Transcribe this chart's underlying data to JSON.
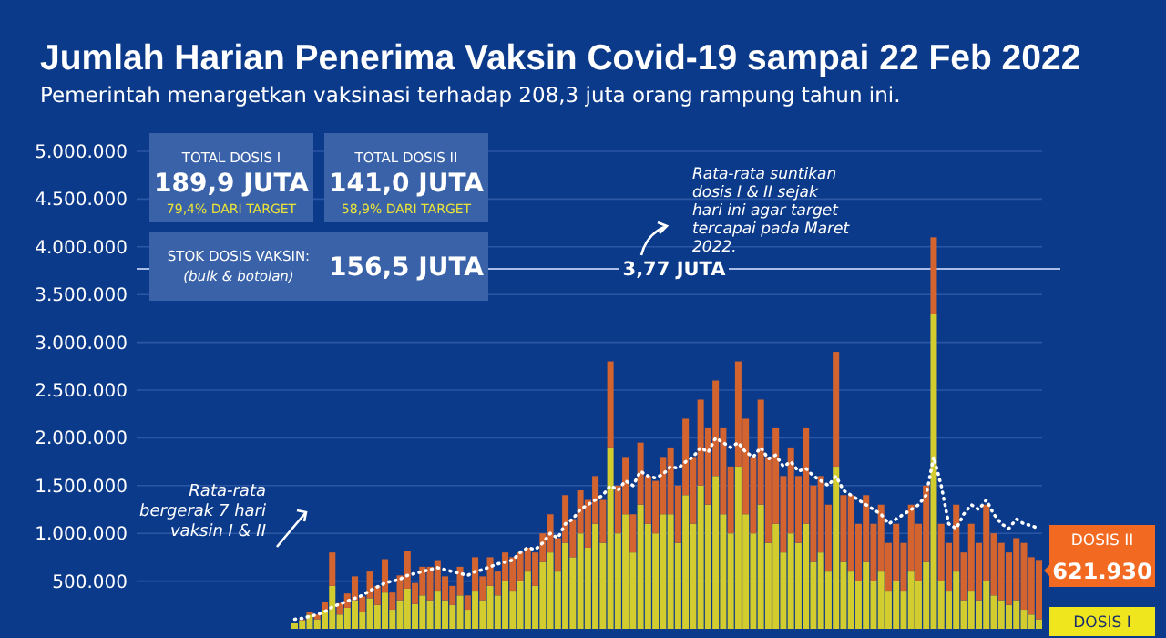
{
  "chart_data": {
    "type": "bar",
    "title": "Jumlah Harian Penerima Vaksin Covid-19 sampai 22 Feb 2022",
    "subtitle": "Pemerintah menargetkan vaksinasi terhadap 208,3 juta orang rampung tahun ini.",
    "categories": [
      null,
      null,
      null,
      null,
      null,
      null,
      null,
      null,
      null,
      null,
      null,
      null,
      null,
      null,
      null,
      null,
      null,
      null,
      null,
      null,
      null,
      null,
      null,
      null,
      null,
      null,
      null,
      null,
      null,
      null,
      null,
      null,
      null,
      null,
      null,
      null,
      null,
      null,
      null,
      null,
      null,
      null,
      null,
      null,
      null,
      null,
      null,
      null,
      null,
      null,
      null,
      null,
      null,
      null,
      null,
      null,
      null,
      null,
      null,
      null,
      null,
      null,
      null,
      null,
      null,
      null,
      null,
      null,
      null,
      null,
      null,
      null,
      null,
      null,
      null,
      null,
      null,
      null,
      null,
      null,
      null,
      null,
      null,
      null,
      null,
      null,
      null,
      null,
      null,
      null,
      null,
      null,
      null,
      null,
      null,
      null,
      null,
      null,
      null,
      null
    ],
    "stacked": true,
    "tick_labels": "y",
    "grid": "y",
    "ylim": [
      0,
      5000000
    ],
    "yticks": [
      {
        "value": 500000,
        "label": "500.000"
      },
      {
        "value": 1000000,
        "label": "1.000.000"
      },
      {
        "value": 1500000,
        "label": "1.500.000"
      },
      {
        "value": 2000000,
        "label": "2.000.000"
      },
      {
        "value": 2500000,
        "label": "2.500.000"
      },
      {
        "value": 3000000,
        "label": "3.000.000"
      },
      {
        "value": 3500000,
        "label": "3.500.000"
      },
      {
        "value": 4000000,
        "label": "4.000.000"
      },
      {
        "value": 4500000,
        "label": "4.500.000"
      },
      {
        "value": 5000000,
        "label": "5.000.000"
      }
    ],
    "series": [
      {
        "name": "DOSIS I",
        "color": "#d2cc2e",
        "values": [
          60000,
          90000,
          150000,
          100000,
          200000,
          450000,
          150000,
          220000,
          300000,
          180000,
          320000,
          250000,
          380000,
          200000,
          300000,
          420000,
          260000,
          350000,
          300000,
          400000,
          300000,
          250000,
          350000,
          200000,
          400000,
          300000,
          450000,
          350000,
          500000,
          400000,
          500000,
          600000,
          450000,
          700000,
          800000,
          600000,
          900000,
          750000,
          1000000,
          850000,
          1100000,
          900000,
          1900000,
          1000000,
          1200000,
          800000,
          1300000,
          1100000,
          1000000,
          1200000,
          1200000,
          900000,
          1400000,
          1100000,
          1500000,
          1300000,
          1600000,
          1200000,
          1000000,
          1700000,
          1200000,
          1000000,
          1300000,
          900000,
          1100000,
          800000,
          1000000,
          900000,
          1100000,
          700000,
          800000,
          600000,
          1700000,
          700000,
          600000,
          500000,
          700000,
          500000,
          600000,
          400000,
          500000,
          400000,
          600000,
          500000,
          700000,
          3300000,
          500000,
          400000,
          600000,
          300000,
          400000,
          300000,
          500000,
          350000,
          300000,
          250000,
          300000,
          200000,
          150000,
          100000
        ]
      },
      {
        "name": "DOSIS II",
        "color": "#d4642f",
        "values": [
          0,
          10000,
          30000,
          50000,
          80000,
          350000,
          120000,
          150000,
          250000,
          160000,
          280000,
          200000,
          350000,
          180000,
          260000,
          400000,
          220000,
          300000,
          350000,
          320000,
          250000,
          200000,
          300000,
          150000,
          350000,
          250000,
          300000,
          250000,
          300000,
          350000,
          300000,
          250000,
          350000,
          300000,
          400000,
          350000,
          500000,
          400000,
          450000,
          500000,
          500000,
          450000,
          900000,
          500000,
          600000,
          400000,
          650000,
          500000,
          550000,
          600000,
          700000,
          600000,
          800000,
          700000,
          900000,
          800000,
          1000000,
          900000,
          700000,
          1100000,
          1000000,
          800000,
          1100000,
          900000,
          1000000,
          800000,
          900000,
          700000,
          1000000,
          800000,
          800000,
          700000,
          1200000,
          700000,
          800000,
          600000,
          700000,
          600000,
          700000,
          500000,
          600000,
          500000,
          700000,
          600000,
          800000,
          800000,
          600000,
          500000,
          700000,
          500000,
          700000,
          600000,
          800000,
          650000,
          600000,
          550000,
          650000,
          700000,
          600000,
          621930
        ]
      },
      {
        "type": "line",
        "name": "Rata-rata bergerak 7 hari vaksin I & II",
        "color": "#ffffff",
        "line_style": "dotted",
        "values": [
          100000,
          110000,
          130000,
          150000,
          180000,
          230000,
          260000,
          290000,
          320000,
          350000,
          400000,
          440000,
          480000,
          500000,
          520000,
          560000,
          580000,
          600000,
          620000,
          640000,
          620000,
          600000,
          580000,
          560000,
          600000,
          620000,
          650000,
          680000,
          700000,
          720000,
          800000,
          850000,
          830000,
          900000,
          1000000,
          950000,
          1100000,
          1150000,
          1250000,
          1300000,
          1350000,
          1400000,
          1500000,
          1450000,
          1550000,
          1500000,
          1650000,
          1600000,
          1580000,
          1620000,
          1700000,
          1680000,
          1750000,
          1800000,
          1900000,
          1850000,
          2000000,
          1950000,
          1900000,
          1950000,
          1850000,
          1800000,
          1900000,
          1780000,
          1820000,
          1700000,
          1750000,
          1650000,
          1680000,
          1600000,
          1550000,
          1500000,
          1600000,
          1450000,
          1400000,
          1350000,
          1300000,
          1250000,
          1200000,
          1100000,
          1150000,
          1200000,
          1250000,
          1300000,
          1400000,
          1800000,
          1500000,
          1100000,
          1050000,
          1200000,
          1300000,
          1250000,
          1350000,
          1200000,
          1100000,
          1050000,
          1150000,
          1100000,
          1080000,
          1050000
        ]
      }
    ],
    "ref_lines": [
      {
        "axis": "y",
        "value": 3770000,
        "label": "3,77 JUTA",
        "color": "#a9bde6"
      }
    ],
    "annotations": [
      "TOTAL DOSIS I",
      "189,9 JUTA",
      "79,4% DARI TARGET",
      "TOTAL DOSIS II",
      "141,0 JUTA",
      "58,9% DARI TARGET",
      "STOK DOSIS VAKSIN:",
      "(bulk & botolan)",
      "156,5 JUTA",
      "Rata-rata suntikan dosis I & II sejak hari ini agar target tercapai pada Maret 2022.",
      "621.930"
    ]
  }
}
